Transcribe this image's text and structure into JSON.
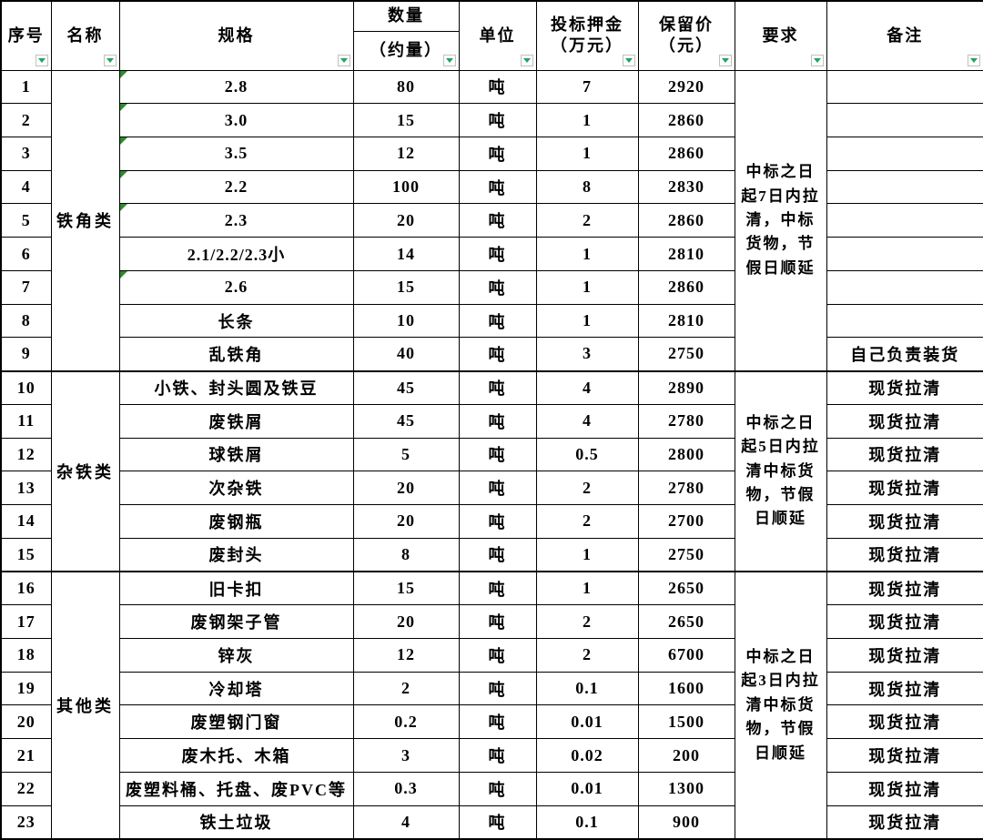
{
  "colors": {
    "filter_arrow_green": "#21a366",
    "comment_flag_green": "#2e8b2e",
    "grid_border": "#000000",
    "background": "#ffffff"
  },
  "table": {
    "headers": {
      "index": "序号",
      "name": "名称",
      "spec": "规格",
      "qty_top": "数量",
      "qty_bottom": "（约量）",
      "unit": "单位",
      "deposit_l1": "投标押金",
      "deposit_l2": "（万元）",
      "reserve_l1": "保留价",
      "reserve_l2": "（元）",
      "requirement": "要求",
      "remark": "备注"
    },
    "groups": [
      {
        "label": "铁角类",
        "requirement": "中标之日起7日内拉清，中标货物，节假日顺延",
        "start": 1,
        "span": 9
      },
      {
        "label": "杂铁类",
        "requirement": "中标之日起5日内拉清中标货物，节假日顺延",
        "start": 10,
        "span": 6
      },
      {
        "label": "其他类",
        "requirement": "中标之日起3日内拉清中标货物，节假日顺延",
        "start": 16,
        "span": 8
      }
    ],
    "rows": [
      {
        "idx": "1",
        "spec": "2.8",
        "qty": "80",
        "unit": "吨",
        "deposit": "7",
        "reserve": "2920",
        "remark": "",
        "flag": true
      },
      {
        "idx": "2",
        "spec": "3.0",
        "qty": "15",
        "unit": "吨",
        "deposit": "1",
        "reserve": "2860",
        "remark": "",
        "flag": true
      },
      {
        "idx": "3",
        "spec": "3.5",
        "qty": "12",
        "unit": "吨",
        "deposit": "1",
        "reserve": "2860",
        "remark": "",
        "flag": true
      },
      {
        "idx": "4",
        "spec": "2.2",
        "qty": "100",
        "unit": "吨",
        "deposit": "8",
        "reserve": "2830",
        "remark": "",
        "flag": true
      },
      {
        "idx": "5",
        "spec": "2.3",
        "qty": "20",
        "unit": "吨",
        "deposit": "2",
        "reserve": "2860",
        "remark": "",
        "flag": true
      },
      {
        "idx": "6",
        "spec": "2.1/2.2/2.3小",
        "qty": "14",
        "unit": "吨",
        "deposit": "1",
        "reserve": "2810",
        "remark": "",
        "flag": false
      },
      {
        "idx": "7",
        "spec": "2.6",
        "qty": "15",
        "unit": "吨",
        "deposit": "1",
        "reserve": "2860",
        "remark": "",
        "flag": true
      },
      {
        "idx": "8",
        "spec": "长条",
        "qty": "10",
        "unit": "吨",
        "deposit": "1",
        "reserve": "2810",
        "remark": "",
        "flag": false
      },
      {
        "idx": "9",
        "spec": "乱铁角",
        "qty": "40",
        "unit": "吨",
        "deposit": "3",
        "reserve": "2750",
        "remark": "自己负责装货",
        "flag": false
      },
      {
        "idx": "10",
        "spec": "小铁、封头圆及铁豆",
        "qty": "45",
        "unit": "吨",
        "deposit": "4",
        "reserve": "2890",
        "remark": "现货拉清",
        "flag": false
      },
      {
        "idx": "11",
        "spec": "废铁屑",
        "qty": "45",
        "unit": "吨",
        "deposit": "4",
        "reserve": "2780",
        "remark": "现货拉清",
        "flag": false
      },
      {
        "idx": "12",
        "spec": "球铁屑",
        "qty": "5",
        "unit": "吨",
        "deposit": "0.5",
        "reserve": "2800",
        "remark": "现货拉清",
        "flag": false
      },
      {
        "idx": "13",
        "spec": "次杂铁",
        "qty": "20",
        "unit": "吨",
        "deposit": "2",
        "reserve": "2780",
        "remark": "现货拉清",
        "flag": false
      },
      {
        "idx": "14",
        "spec": "废钢瓶",
        "qty": "20",
        "unit": "吨",
        "deposit": "2",
        "reserve": "2700",
        "remark": "现货拉清",
        "flag": false
      },
      {
        "idx": "15",
        "spec": "废封头",
        "qty": "8",
        "unit": "吨",
        "deposit": "1",
        "reserve": "2750",
        "remark": "现货拉清",
        "flag": false
      },
      {
        "idx": "16",
        "spec": "旧卡扣",
        "qty": "15",
        "unit": "吨",
        "deposit": "1",
        "reserve": "2650",
        "remark": "现货拉清",
        "flag": false
      },
      {
        "idx": "17",
        "spec": "废钢架子管",
        "qty": "20",
        "unit": "吨",
        "deposit": "2",
        "reserve": "2650",
        "remark": "现货拉清",
        "flag": false
      },
      {
        "idx": "18",
        "spec": "锌灰",
        "qty": "12",
        "unit": "吨",
        "deposit": "2",
        "reserve": "6700",
        "remark": "现货拉清",
        "flag": false
      },
      {
        "idx": "19",
        "spec": "冷却塔",
        "qty": "2",
        "unit": "吨",
        "deposit": "0.1",
        "reserve": "1600",
        "remark": "现货拉清",
        "flag": false
      },
      {
        "idx": "20",
        "spec": "废塑钢门窗",
        "qty": "0.2",
        "unit": "吨",
        "deposit": "0.01",
        "reserve": "1500",
        "remark": "现货拉清",
        "flag": false
      },
      {
        "idx": "21",
        "spec": "废木托、木箱",
        "qty": "3",
        "unit": "吨",
        "deposit": "0.02",
        "reserve": "200",
        "remark": "现货拉清",
        "flag": false
      },
      {
        "idx": "22",
        "spec": "废塑料桶、托盘、废PVC等",
        "qty": "0.3",
        "unit": "吨",
        "deposit": "0.01",
        "reserve": "1300",
        "remark": "现货拉清",
        "flag": false
      },
      {
        "idx": "23",
        "spec": "铁土垃圾",
        "qty": "4",
        "unit": "吨",
        "deposit": "0.1",
        "reserve": "900",
        "remark": "现货拉清",
        "flag": false
      }
    ]
  }
}
